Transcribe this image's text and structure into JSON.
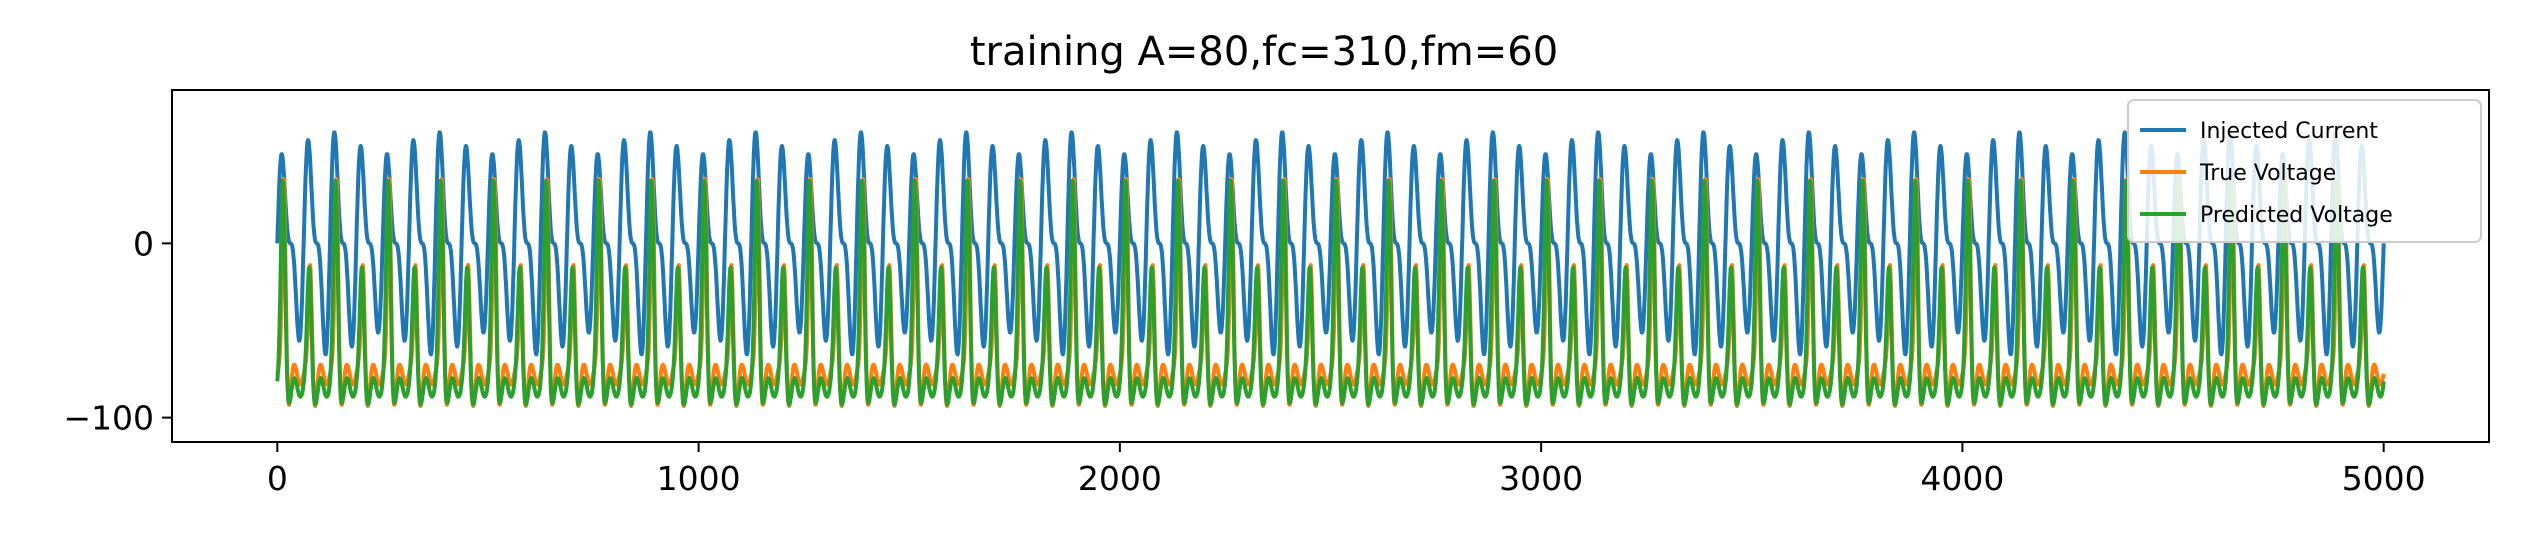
{
  "chart_data": {
    "type": "line",
    "title": "training A=80,fc=310,fm=60",
    "xlabel": "",
    "ylabel": "",
    "xlim": [
      -250,
      5250
    ],
    "ylim": [
      -114,
      88
    ],
    "xticks": [
      0,
      1000,
      2000,
      3000,
      4000,
      5000
    ],
    "xtick_labels": [
      "0",
      "1000",
      "2000",
      "3000",
      "4000",
      "5000"
    ],
    "yticks": [
      0,
      -100
    ],
    "ytick_labels": [
      "0",
      "−100"
    ],
    "grid": false,
    "legend_position": "top-right",
    "series": [
      {
        "name": "Injected Current",
        "color": "#1f77b4",
        "model": {
          "amplitude": 80,
          "carrier_period": 62.5,
          "modulation_period": 250,
          "modulation_depth": 0.45,
          "x_start": 0,
          "x_end": 5000,
          "samples": 5000
        }
      },
      {
        "name": "True Voltage",
        "color": "#ff7f0e",
        "model": {
          "rest": -75,
          "peak": 38,
          "spike_period": 62.5,
          "spike_width": 4,
          "undershoot": -100,
          "x_start": 0,
          "x_end": 5000,
          "samples": 5000
        }
      },
      {
        "name": "Predicted Voltage",
        "color": "#2ca02c",
        "model": {
          "rest": -82,
          "peak": 34,
          "spike_period": 62.5,
          "spike_width": 5,
          "undershoot": -95,
          "x_start": 0,
          "x_end": 5000,
          "samples": 5000
        }
      }
    ]
  }
}
